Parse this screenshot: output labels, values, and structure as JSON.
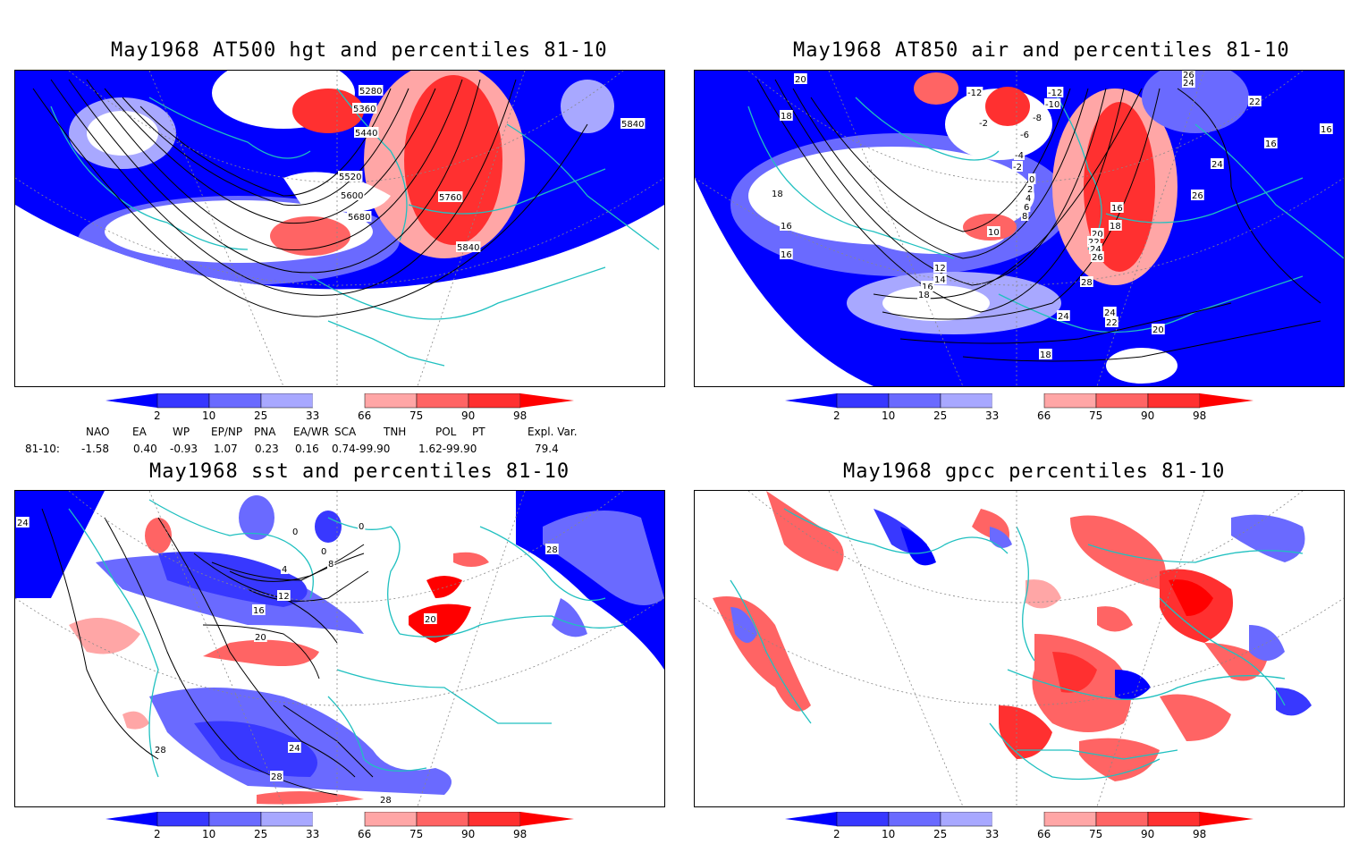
{
  "panels": {
    "p1": {
      "title": "May1968 AT500 hgt and percentiles 81-10",
      "contour_labels": [
        "5280",
        "5360",
        "5440",
        "5520",
        "5600",
        "5680",
        "5760",
        "5840",
        "5840"
      ]
    },
    "p2": {
      "title": "May1968 AT850 air and percentiles 81-10",
      "contour_labels": [
        "20",
        "18",
        "-12",
        "-2",
        "-12",
        "-10",
        "-8",
        "-6",
        "-4",
        "-2",
        "0",
        "2",
        "4",
        "6",
        "8",
        "10",
        "12",
        "14",
        "16",
        "18",
        "16",
        "18",
        "20",
        "22",
        "24",
        "26",
        "28",
        "24",
        "24",
        "22",
        "20",
        "18",
        "16",
        "18",
        "16",
        "24",
        "26",
        "22",
        "24",
        "26",
        "16",
        "16"
      ]
    },
    "p3": {
      "title": "May1968 sst and percentiles 81-10",
      "contour_labels": [
        "24",
        "0",
        "0",
        "0",
        "4",
        "8",
        "12",
        "16",
        "20",
        "24",
        "28",
        "28",
        "28",
        "20",
        "28"
      ]
    },
    "p4": {
      "title": "May1968 gpcc percentiles 81-10",
      "contour_labels": []
    }
  },
  "colorbar": {
    "labels": [
      "2",
      "10",
      "25",
      "33",
      "66",
      "75",
      "90",
      "98"
    ],
    "colors": [
      "#0000ff",
      "#3838ff",
      "#6a6aff",
      "#a8a8ff",
      "#ffa6a6",
      "#ff6464",
      "#ff3030",
      "#ff0000"
    ]
  },
  "indices": {
    "headers": [
      "NAO",
      "EA",
      "WP",
      "EP/NP",
      "PNA",
      "EA/WR",
      "SCA",
      "TNH",
      "POL",
      "PT",
      "Expl. Var."
    ],
    "row_label": "81-10:",
    "values": [
      "-1.58",
      "0.40",
      "-0.93",
      "1.07",
      "0.23",
      "0.16",
      "0.74-99.90",
      "",
      "1.62-99.90",
      "",
      "79.4"
    ]
  },
  "colors": {
    "coastline": "#20c0c0",
    "contour": "#000000",
    "blue": "#0000ff",
    "red": "#ff0000"
  }
}
